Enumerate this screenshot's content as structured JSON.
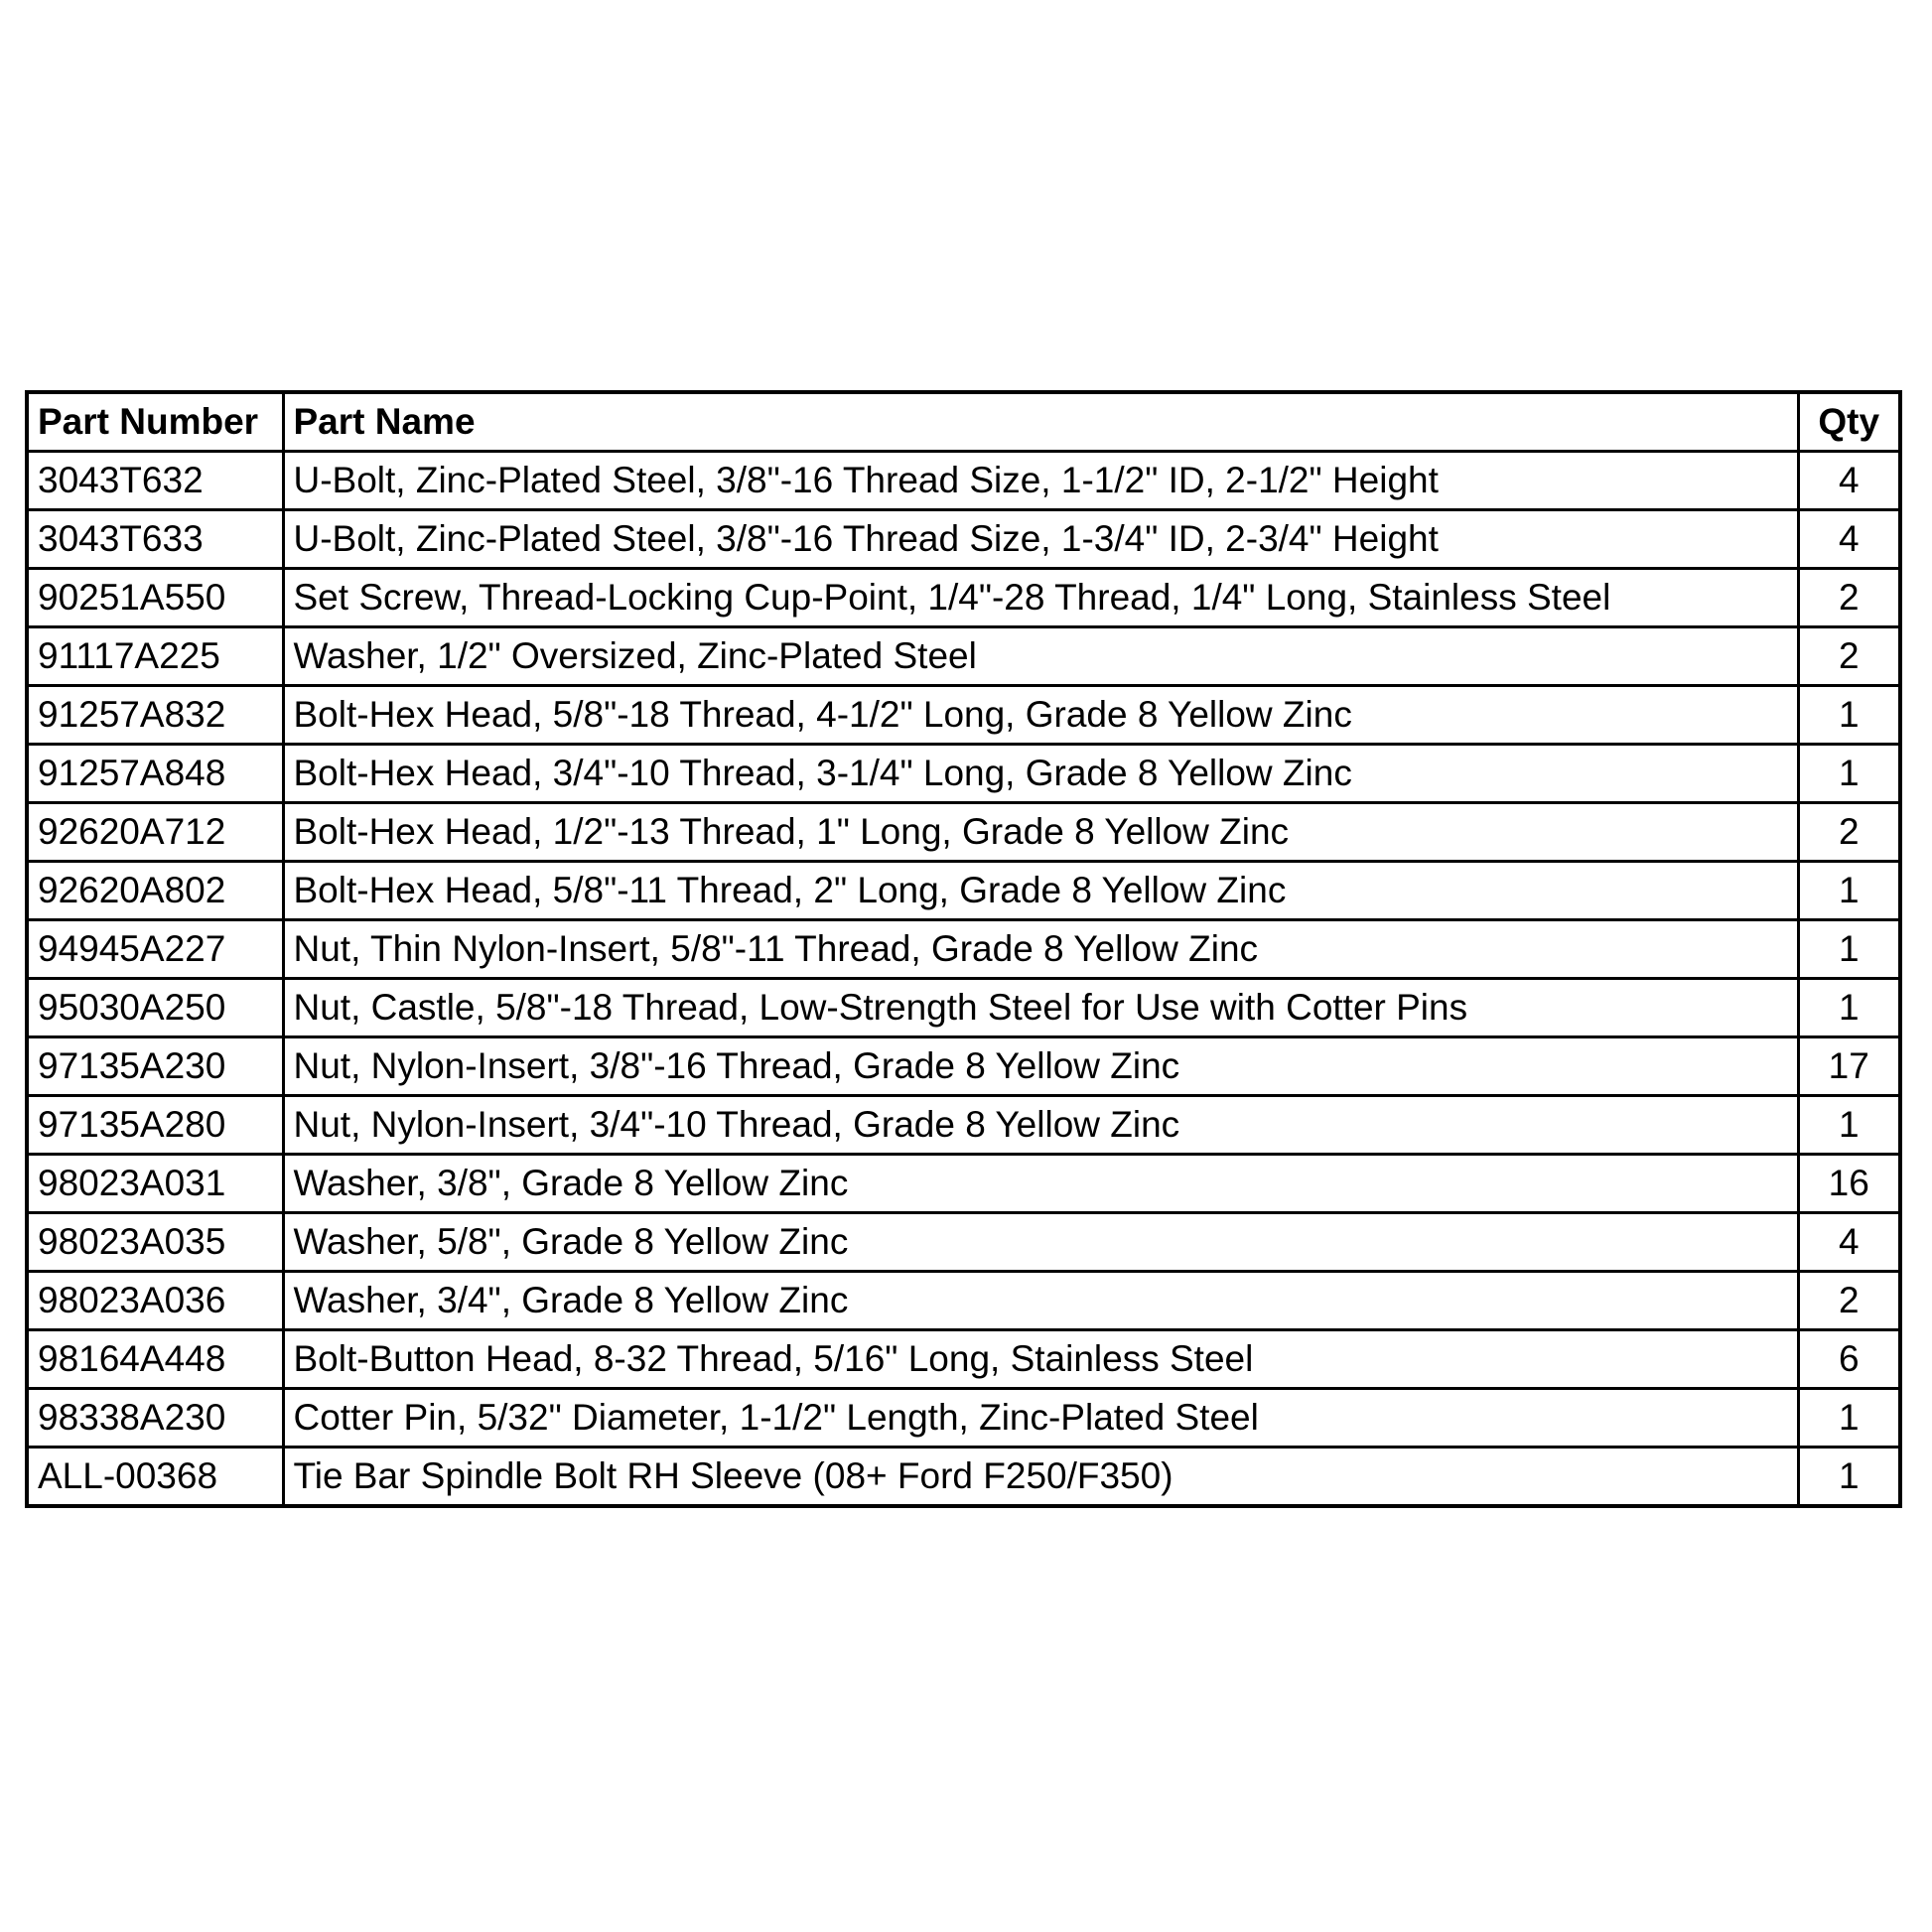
{
  "page": {
    "background_color": "#ffffff",
    "border_color": "#000000",
    "text_color": "#000000"
  },
  "table": {
    "columns": [
      {
        "key": "part_number",
        "label": "Part Number",
        "align": "left"
      },
      {
        "key": "part_name",
        "label": "Part Name",
        "align": "left"
      },
      {
        "key": "qty",
        "label": "Qty",
        "align": "center"
      }
    ],
    "rows": [
      {
        "part_number": "3043T632",
        "part_name": "U-Bolt, Zinc-Plated Steel, 3/8\"-16 Thread Size, 1-1/2\" ID, 2-1/2\" Height",
        "qty": "4"
      },
      {
        "part_number": "3043T633",
        "part_name": "U-Bolt, Zinc-Plated Steel, 3/8\"-16 Thread Size, 1-3/4\" ID, 2-3/4\" Height",
        "qty": "4"
      },
      {
        "part_number": "90251A550",
        "part_name": "Set Screw, Thread-Locking Cup-Point, 1/4\"-28 Thread, 1/4\" Long, Stainless Steel",
        "qty": "2"
      },
      {
        "part_number": "91117A225",
        "part_name": "Washer, 1/2\" Oversized, Zinc-Plated Steel",
        "qty": "2"
      },
      {
        "part_number": "91257A832",
        "part_name": "Bolt-Hex Head, 5/8\"-18 Thread, 4-1/2\" Long, Grade 8 Yellow Zinc",
        "qty": "1"
      },
      {
        "part_number": "91257A848",
        "part_name": "Bolt-Hex Head, 3/4\"-10 Thread, 3-1/4\" Long, Grade 8 Yellow Zinc",
        "qty": "1"
      },
      {
        "part_number": "92620A712",
        "part_name": "Bolt-Hex Head, 1/2\"-13 Thread, 1\" Long, Grade 8 Yellow Zinc",
        "qty": "2"
      },
      {
        "part_number": "92620A802",
        "part_name": "Bolt-Hex Head, 5/8\"-11 Thread, 2\" Long, Grade 8 Yellow Zinc",
        "qty": "1"
      },
      {
        "part_number": "94945A227",
        "part_name": "Nut, Thin Nylon-Insert, 5/8\"-11 Thread, Grade 8 Yellow Zinc",
        "qty": "1"
      },
      {
        "part_number": "95030A250",
        "part_name": "Nut, Castle, 5/8\"-18 Thread, Low-Strength Steel for Use with Cotter Pins",
        "qty": "1"
      },
      {
        "part_number": "97135A230",
        "part_name": "Nut, Nylon-Insert, 3/8\"-16 Thread, Grade 8 Yellow Zinc",
        "qty": "17"
      },
      {
        "part_number": "97135A280",
        "part_name": "Nut, Nylon-Insert, 3/4\"-10 Thread, Grade 8 Yellow Zinc",
        "qty": "1"
      },
      {
        "part_number": "98023A031",
        "part_name": "Washer, 3/8\", Grade 8 Yellow Zinc",
        "qty": "16"
      },
      {
        "part_number": "98023A035",
        "part_name": "Washer, 5/8\", Grade 8 Yellow Zinc",
        "qty": "4"
      },
      {
        "part_number": "98023A036",
        "part_name": "Washer, 3/4\", Grade 8 Yellow Zinc",
        "qty": "2"
      },
      {
        "part_number": "98164A448",
        "part_name": "Bolt-Button Head,  8-32 Thread, 5/16\" Long, Stainless Steel",
        "qty": "6"
      },
      {
        "part_number": "98338A230",
        "part_name": "Cotter Pin, 5/32\" Diameter, 1-1/2\" Length, Zinc-Plated Steel",
        "qty": "1"
      },
      {
        "part_number": "ALL-00368",
        "part_name": "Tie Bar Spindle Bolt RH Sleeve (08+ Ford F250/F350)",
        "qty": "1"
      }
    ]
  }
}
